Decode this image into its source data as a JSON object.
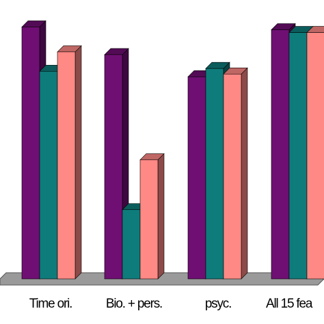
{
  "chart_data": {
    "type": "bar",
    "style": "3d-clustered",
    "categories": [
      "Time ori.",
      "Bio. + pers.",
      "psyc.",
      "All 15 fea"
    ],
    "series": [
      {
        "color": "#6f0f73",
        "values": [
          0.91,
          0.81,
          0.73,
          0.9
        ]
      },
      {
        "color": "#0e7c7b",
        "values": [
          0.75,
          0.25,
          0.76,
          0.89
        ]
      },
      {
        "color": "#ff8985",
        "values": [
          0.82,
          0.43,
          0.74,
          0.89
        ]
      }
    ],
    "ylim": [
      0,
      1
    ],
    "legend": "none",
    "grid": false,
    "colors": {
      "floor": "#9a9a9a",
      "background": "#ffffff"
    }
  }
}
